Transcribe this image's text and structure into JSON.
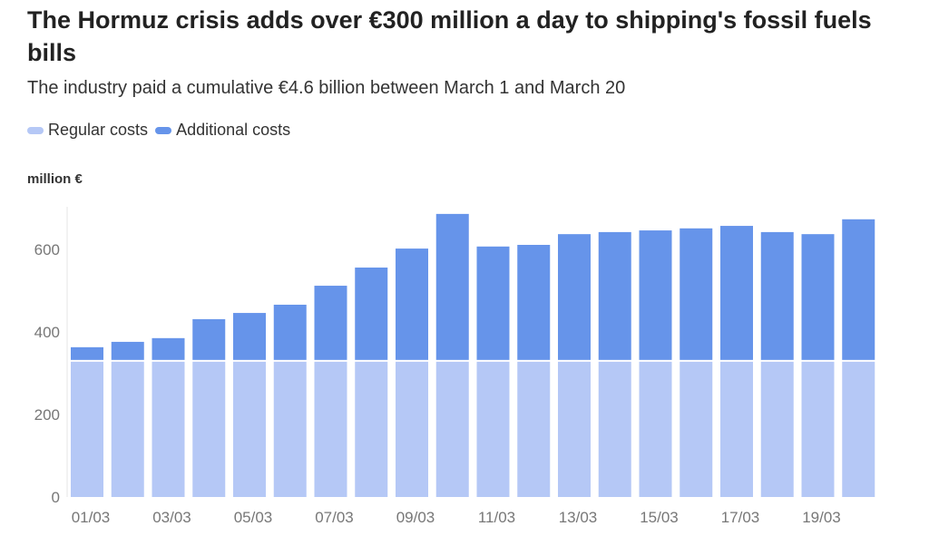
{
  "title": "The Hormuz crisis adds over €300 million a day to shipping's fossil fuels bills",
  "subtitle": "The industry paid a cumulative €4.6 billion between March 1 and March 20",
  "chart_data": {
    "type": "bar",
    "stacked": true,
    "ylabel": "million €",
    "ylim": [
      0,
      700
    ],
    "yticks": [
      0,
      200,
      400,
      600
    ],
    "grid": false,
    "legend_placement": "top-left",
    "categories": [
      "01/03",
      "02/03",
      "03/03",
      "04/03",
      "05/03",
      "06/03",
      "07/03",
      "08/03",
      "09/03",
      "10/03",
      "11/03",
      "12/03",
      "13/03",
      "14/03",
      "15/03",
      "16/03",
      "17/03",
      "18/03",
      "19/03",
      "20/03"
    ],
    "xtick_labels": [
      "01/03",
      "03/03",
      "05/03",
      "07/03",
      "09/03",
      "11/03",
      "13/03",
      "15/03",
      "17/03",
      "19/03"
    ],
    "series": [
      {
        "name": "Regular costs",
        "color": "#b5c8f6",
        "values": [
          330,
          330,
          330,
          330,
          330,
          330,
          330,
          330,
          330,
          330,
          330,
          330,
          330,
          330,
          330,
          330,
          330,
          330,
          330,
          330
        ]
      },
      {
        "name": "Additional costs",
        "color": "#6694ea",
        "values": [
          33,
          46,
          55,
          101,
          116,
          136,
          182,
          226,
          272,
          356,
          277,
          281,
          307,
          312,
          316,
          321,
          327,
          312,
          307,
          343
        ]
      }
    ]
  }
}
